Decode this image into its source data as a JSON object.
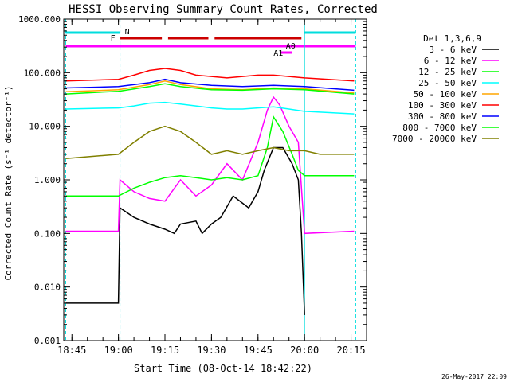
{
  "chart_data": {
    "type": "line",
    "title": "HESSI Observing Summary Count Rates, Corrected",
    "ylabel": "Corrected Count Rate (s⁻¹ detector⁻¹)",
    "xlabel": "Start Time (08-Oct-14 18:42:22)",
    "xlim": [
      "18:42:22",
      "20:20:00"
    ],
    "ylim": [
      0.001,
      1000
    ],
    "yscale": "log",
    "x_ticks": [
      "18:45",
      "19:00",
      "19:15",
      "19:30",
      "19:45",
      "20:00",
      "20:15"
    ],
    "y_ticks": [
      "1000.000",
      "100.000",
      "10.000",
      "1.000",
      "0.100",
      "0.010",
      "0.001"
    ],
    "legend": {
      "placement": "right",
      "title": "Det 1,3,6,9",
      "entries": [
        "3 - 6 keV",
        "6 - 12 keV",
        "12 - 25 keV",
        "25 - 50 keV",
        "50 - 100 keV",
        "100 - 300 keV",
        "300 - 800 keV",
        "800 - 7000 keV",
        "7000 - 20000 keV"
      ]
    },
    "footer_date": "26-May-2017 22:09",
    "flag_labels": {
      "night": "N",
      "flare": "F",
      "attenuator": "A1",
      "attenuator_state": "A0"
    },
    "series": [
      {
        "name": "3 - 6 keV",
        "color": "#000000",
        "x": [
          "18:43",
          "19:00",
          "19:00:30",
          "19:05",
          "19:10",
          "19:15",
          "19:18",
          "19:20",
          "19:25",
          "19:27",
          "19:30",
          "19:33",
          "19:37",
          "19:42",
          "19:45",
          "19:47",
          "19:50",
          "19:53",
          "19:56",
          "19:58",
          "19:59",
          "20:00"
        ],
        "y": [
          0.005,
          0.005,
          0.3,
          0.2,
          0.15,
          0.12,
          0.1,
          0.15,
          0.17,
          0.1,
          0.15,
          0.2,
          0.5,
          0.3,
          0.6,
          1.5,
          4,
          4,
          2,
          1,
          0.1,
          0.003
        ]
      },
      {
        "name": "6 - 12 keV",
        "color": "#ff00ff",
        "x": [
          "18:43",
          "19:00",
          "19:00:30",
          "19:05",
          "19:10",
          "19:15",
          "19:20",
          "19:25",
          "19:30",
          "19:35",
          "19:40",
          "19:45",
          "19:48",
          "19:50",
          "19:52",
          "19:55",
          "19:58",
          "20:00",
          "20:16"
        ],
        "y": [
          0.11,
          0.11,
          1.0,
          0.6,
          0.45,
          0.4,
          1.0,
          0.5,
          0.8,
          2.0,
          1.0,
          5,
          20,
          35,
          25,
          10,
          5,
          0.1,
          0.11
        ]
      },
      {
        "name": "12 - 25 keV",
        "color": "#00ff00",
        "x": [
          "18:43",
          "19:00",
          "19:05",
          "19:10",
          "19:15",
          "19:20",
          "19:25",
          "19:30",
          "19:35",
          "19:40",
          "19:45",
          "19:48",
          "19:50",
          "19:53",
          "19:56",
          "19:58",
          "20:00",
          "20:16"
        ],
        "y": [
          0.5,
          0.5,
          0.7,
          0.9,
          1.1,
          1.2,
          1.1,
          1.0,
          1.1,
          1.0,
          1.2,
          4,
          15,
          8,
          3,
          1.5,
          1.2,
          1.2
        ]
      },
      {
        "name": "25 - 50 keV",
        "color": "#00ffff",
        "x": [
          "18:43",
          "19:00",
          "19:05",
          "19:10",
          "19:15",
          "19:20",
          "19:25",
          "19:30",
          "19:35",
          "19:40",
          "19:45",
          "19:50",
          "19:55",
          "20:00",
          "20:16"
        ],
        "y": [
          21,
          22,
          24,
          27,
          28,
          26,
          24,
          22,
          21,
          21,
          22,
          23,
          21,
          19,
          17
        ]
      },
      {
        "name": "50 - 100 keV",
        "color": "#ffa500",
        "x": [
          "18:43",
          "19:00",
          "19:10",
          "19:15",
          "19:20",
          "19:30",
          "19:40",
          "19:50",
          "20:00",
          "20:16"
        ],
        "y": [
          44,
          48,
          60,
          70,
          60,
          50,
          48,
          52,
          50,
          42
        ]
      },
      {
        "name": "100 - 300 keV",
        "color": "#ff0000",
        "x": [
          "18:43",
          "19:00",
          "19:05",
          "19:10",
          "19:15",
          "19:20",
          "19:25",
          "19:30",
          "19:35",
          "19:40",
          "19:45",
          "19:50",
          "19:55",
          "20:00",
          "20:16"
        ],
        "y": [
          70,
          75,
          90,
          110,
          120,
          110,
          90,
          85,
          80,
          85,
          90,
          90,
          85,
          80,
          70
        ]
      },
      {
        "name": "300 - 800 keV",
        "color": "#0000ff",
        "x": [
          "18:43",
          "19:00",
          "19:10",
          "19:15",
          "19:20",
          "19:30",
          "19:40",
          "19:50",
          "20:00",
          "20:16"
        ],
        "y": [
          52,
          55,
          65,
          75,
          65,
          58,
          55,
          58,
          55,
          47
        ]
      },
      {
        "name": "800 - 7000 keV",
        "color": "#00ff00",
        "x": [
          "18:43",
          "19:00",
          "19:10",
          "19:15",
          "19:20",
          "19:30",
          "19:40",
          "19:50",
          "20:00",
          "20:16"
        ],
        "y": [
          40,
          45,
          55,
          62,
          55,
          48,
          47,
          50,
          48,
          40
        ]
      },
      {
        "name": "7000 - 20000 keV",
        "color": "#808000",
        "x": [
          "18:43",
          "19:00",
          "19:05",
          "19:10",
          "19:15",
          "19:20",
          "19:25",
          "19:30",
          "19:35",
          "19:40",
          "19:45",
          "19:50",
          "19:55",
          "20:00",
          "20:05",
          "20:16"
        ],
        "y": [
          2.5,
          3,
          5,
          8,
          10,
          8,
          5,
          3,
          3.5,
          3,
          3.5,
          4,
          3.5,
          3.5,
          3,
          3
        ]
      }
    ]
  }
}
